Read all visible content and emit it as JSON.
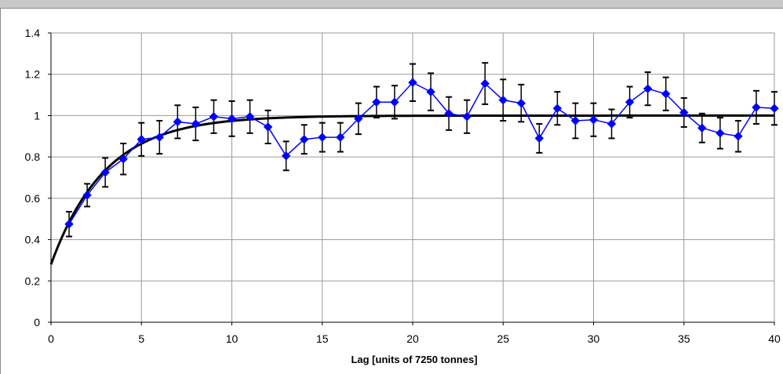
{
  "chart_data": {
    "type": "line",
    "title": "",
    "xlabel": "Lag [units of 7250 tonnes]",
    "ylabel": "",
    "xlim": [
      0,
      40
    ],
    "ylim": [
      0,
      1.4
    ],
    "x_ticks": [
      0,
      5,
      10,
      15,
      20,
      25,
      30,
      35,
      40
    ],
    "y_ticks": [
      0,
      0.2,
      0.4,
      0.6,
      0.8,
      1,
      1.2,
      1.4
    ],
    "x_tick_labels": [
      "0",
      "5",
      "10",
      "15",
      "20",
      "25",
      "30",
      "35",
      "40"
    ],
    "y_tick_labels": [
      "0",
      "0.2",
      "0.4",
      "0.6",
      "0.8",
      "1",
      "1.2",
      "1.4"
    ],
    "grid": true,
    "legend": "none",
    "series": [
      {
        "kind": "points-with-error-bars",
        "color": "#0000ff",
        "marker": "diamond",
        "x": [
          1,
          2,
          3,
          4,
          5,
          6,
          7,
          8,
          9,
          10,
          11,
          12,
          13,
          14,
          15,
          16,
          17,
          18,
          19,
          20,
          21,
          22,
          23,
          24,
          25,
          26,
          27,
          28,
          29,
          30,
          31,
          32,
          33,
          34,
          35,
          36,
          37,
          38,
          39,
          40
        ],
        "y": [
          0.475,
          0.615,
          0.725,
          0.79,
          0.885,
          0.895,
          0.97,
          0.96,
          0.995,
          0.985,
          0.995,
          0.945,
          0.805,
          0.885,
          0.895,
          0.895,
          0.985,
          1.065,
          1.065,
          1.16,
          1.115,
          1.01,
          0.995,
          1.155,
          1.075,
          1.06,
          0.89,
          1.035,
          0.975,
          0.98,
          0.96,
          1.065,
          1.13,
          1.105,
          1.015,
          0.94,
          0.915,
          0.9,
          1.04,
          1.035
        ],
        "error": [
          0.06,
          0.055,
          0.07,
          0.075,
          0.08,
          0.08,
          0.08,
          0.08,
          0.08,
          0.085,
          0.08,
          0.08,
          0.07,
          0.07,
          0.07,
          0.07,
          0.075,
          0.075,
          0.08,
          0.09,
          0.09,
          0.08,
          0.08,
          0.1,
          0.1,
          0.09,
          0.07,
          0.08,
          0.085,
          0.08,
          0.07,
          0.075,
          0.08,
          0.08,
          0.07,
          0.07,
          0.075,
          0.075,
          0.08,
          0.08
        ]
      },
      {
        "kind": "fitted-curve",
        "color": "#000000",
        "model": "1 - 0.72 * exp(-x / 3)",
        "x_start": 0,
        "x_end": 40
      }
    ]
  }
}
